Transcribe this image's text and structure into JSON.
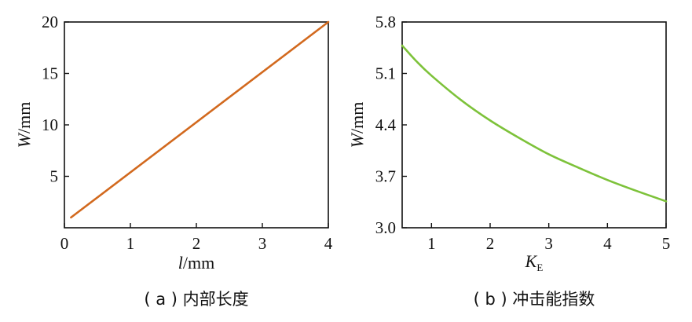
{
  "chart_data": [
    {
      "type": "line",
      "caption": "( a ) 内部长度",
      "xlabel": {
        "symbol": "l",
        "unit": "/mm"
      },
      "ylabel": {
        "symbol": "W",
        "unit": "/mm"
      },
      "xlim": [
        0,
        4
      ],
      "ylim": [
        0,
        20
      ],
      "xticks": [
        "0",
        "1",
        "2",
        "3",
        "4"
      ],
      "yticks": [
        "5",
        "10",
        "15",
        "20"
      ],
      "grid": false,
      "series": [
        {
          "color": "#d2691e",
          "x": [
            0.1,
            4.0
          ],
          "y": [
            1.0,
            20.0
          ]
        }
      ]
    },
    {
      "type": "line",
      "caption": "( b ) 冲击能指数",
      "xlabel": {
        "symbol": "K",
        "sub": "E"
      },
      "ylabel": {
        "symbol": "W",
        "unit": "/mm"
      },
      "xlim": [
        0.5,
        5
      ],
      "ylim": [
        3.0,
        5.8
      ],
      "xticks": [
        "1",
        "2",
        "3",
        "4",
        "5"
      ],
      "xtick_values": [
        1,
        2,
        3,
        4,
        5
      ],
      "yticks": [
        "3.0",
        "3.7",
        "4.4",
        "5.1",
        "5.8"
      ],
      "ytick_values": [
        3.0,
        3.7,
        4.4,
        5.1,
        5.8
      ],
      "grid": false,
      "series": [
        {
          "color": "#7dc23a",
          "x": [
            0.5,
            0.75,
            1.0,
            1.5,
            2.0,
            2.5,
            3.0,
            3.5,
            4.0,
            4.5,
            5.0
          ],
          "y": [
            5.48,
            5.26,
            5.07,
            4.74,
            4.46,
            4.22,
            4.0,
            3.82,
            3.65,
            3.5,
            3.36
          ]
        }
      ]
    }
  ]
}
